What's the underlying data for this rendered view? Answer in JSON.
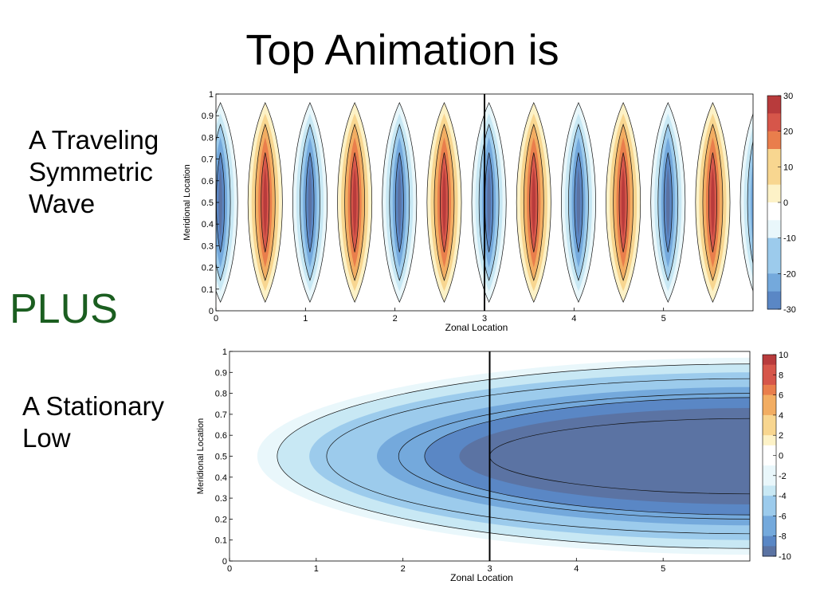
{
  "slide": {
    "title": "Top Animation is",
    "label_top": [
      "A Traveling",
      "Symmetric",
      "Wave"
    ],
    "plus": "PLUS",
    "label_bottom": [
      "A Stationary",
      "Low"
    ]
  },
  "chart_data": [
    {
      "type": "heatmap",
      "title": "",
      "xlabel": "Zonal Location",
      "ylabel": "Meridional Location",
      "xlim": [
        0,
        6
      ],
      "ylim": [
        0,
        1
      ],
      "xticks": [
        "0",
        "1",
        "2",
        "3",
        "4",
        "5"
      ],
      "yticks": [
        "0",
        "0.1",
        "0.2",
        "0.3",
        "0.4",
        "0.5",
        "0.6",
        "0.7",
        "0.8",
        "0.9",
        "1"
      ],
      "marker_line_x": 3,
      "field": "traveling symmetric wave, alternating troughs (negative) and ridges (positive), wavenumber ~1 per zonal unit",
      "trough_centers_x": [
        0.05,
        1.05,
        2.05,
        3.05,
        4.05,
        5.05
      ],
      "ridge_centers_x": [
        0.55,
        1.55,
        2.55,
        3.55,
        4.55,
        5.55
      ],
      "min": -30,
      "max": 30,
      "colorbar_ticks": [
        "30",
        "20",
        "10",
        "0",
        "-10",
        "-20",
        "-30"
      ]
    },
    {
      "type": "heatmap",
      "title": "",
      "xlabel": "Zonal Location",
      "ylabel": "Meridional Location",
      "xlim": [
        0,
        6
      ],
      "ylim": [
        0,
        1
      ],
      "xticks": [
        "0",
        "1",
        "2",
        "3",
        "4",
        "5"
      ],
      "yticks": [
        "0",
        "0.1",
        "0.2",
        "0.3",
        "0.4",
        "0.5",
        "0.6",
        "0.7",
        "0.8",
        "0.9",
        "1"
      ],
      "marker_line_x": 3,
      "field": "stationary low, negative values increasing in magnitude toward the east, centered at meridional location 0.5",
      "min": -10,
      "max": 10,
      "colorbar_ticks": [
        "10",
        "8",
        "6",
        "4",
        "2",
        "0",
        "-2",
        "-4",
        "-6",
        "-8",
        "-10"
      ]
    }
  ],
  "colors": {
    "scale": [
      "#5b73a3",
      "#5a87c5",
      "#74a9dc",
      "#9ccbec",
      "#c8e8f4",
      "#e9f7fb",
      "#ffffff",
      "#fdf2c7",
      "#f8d690",
      "#f2ad62",
      "#e97e4c",
      "#d6564a",
      "#b83b3c"
    ],
    "plus": "#1b5e20"
  }
}
